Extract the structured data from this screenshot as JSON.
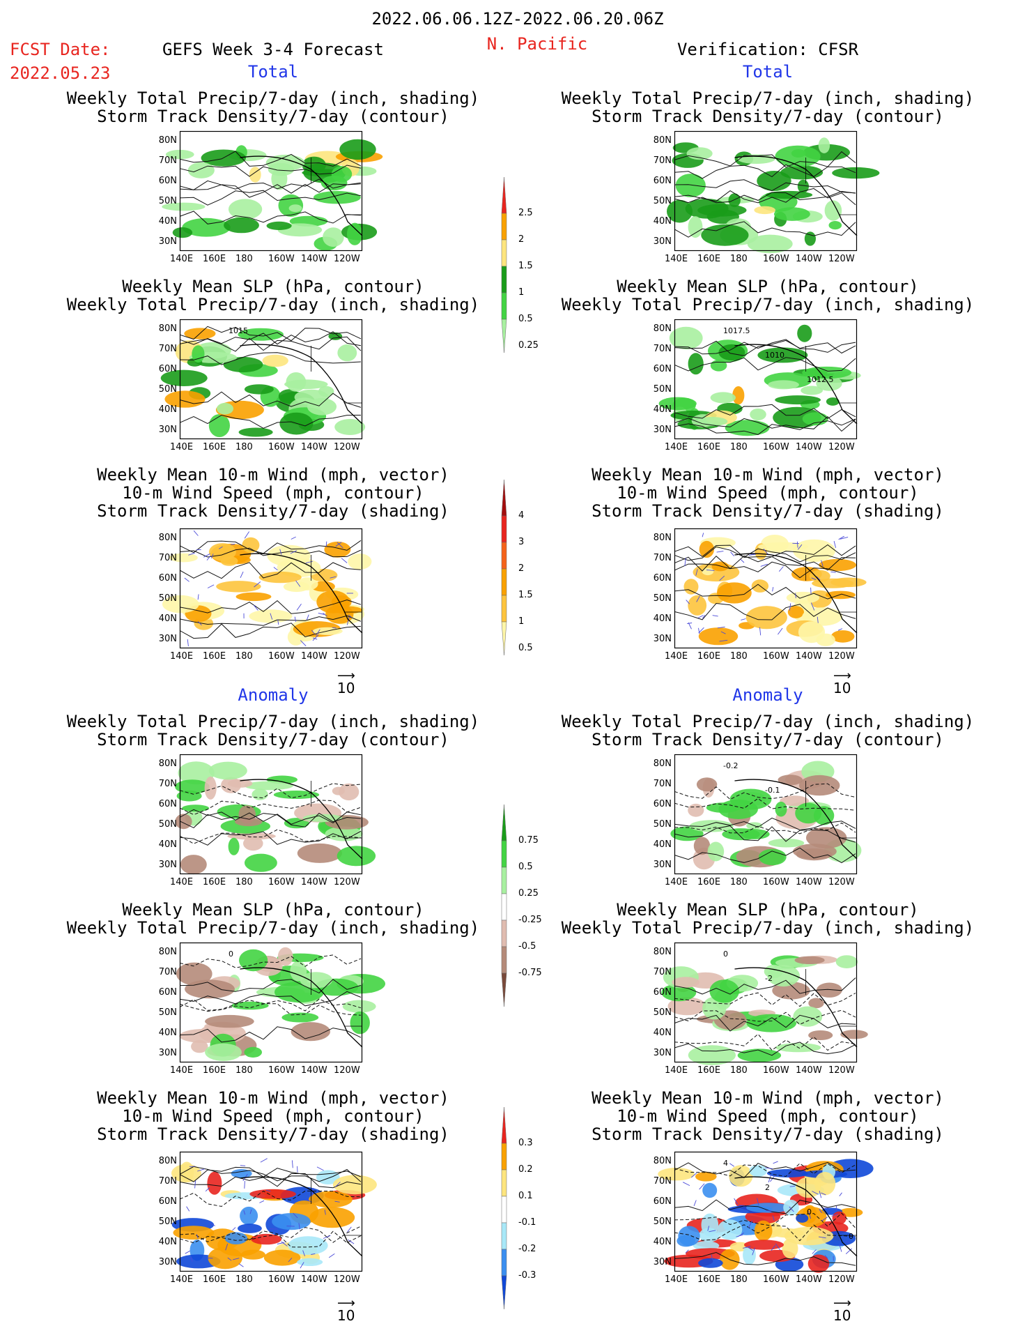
{
  "header": {
    "date_range": "2022.06.06.12Z-2022.06.20.06Z",
    "fcst_label": "FCST Date:",
    "fcst_date": "2022.05.23",
    "forecast_title": "GEFS Week 3-4 Forecast",
    "region": "N. Pacific",
    "verification": "Verification: CFSR",
    "total_left": "Total",
    "total_right": "Total",
    "anomaly_left": "Anomaly",
    "anomaly_right": "Anomaly"
  },
  "titles": {
    "precip_track": [
      "Weekly Total Precip/7-day (inch, shading)",
      "Storm Track Density/7-day (contour)"
    ],
    "slp_precip": [
      "Weekly Mean SLP (hPa, contour)",
      "Weekly Total Precip/7-day (inch, shading)"
    ],
    "wind_track": [
      "Weekly Mean 10-m Wind (mph, vector)",
      "10-m Wind Speed (mph, contour)",
      "Storm Track Density/7-day (shading)"
    ]
  },
  "axes": {
    "lat_labels": [
      "80N",
      "70N",
      "60N",
      "50N",
      "40N",
      "30N"
    ],
    "lon_labels": [
      "140E",
      "160E",
      "180",
      "160W",
      "140W",
      "120W"
    ]
  },
  "vector_reference": "10",
  "contour_labels": {
    "slp_total_fcst": [
      "1015"
    ],
    "slp_total_verif": [
      "1017.5",
      "1010",
      "1012.5"
    ],
    "precip_anom_verif": [
      "-0.2",
      "-0.1"
    ],
    "slp_anom_verif": [
      "0",
      "-2"
    ],
    "slp_anom_fcst": [
      "0"
    ],
    "wind_anom_verif": [
      "4",
      "2",
      "0",
      "0"
    ]
  },
  "colorbars": [
    {
      "id": "precip-total",
      "labels": [
        "2.5",
        "2",
        "1.5",
        "1",
        "0.5",
        "0.25"
      ],
      "colors": [
        "#e8251f",
        "#f9a100",
        "#fde57e",
        "#1a9c1a",
        "#43d443",
        "#a8f0a0"
      ]
    },
    {
      "id": "track-total",
      "labels": [
        "4",
        "3",
        "2",
        "1.5",
        "1",
        "0.5"
      ],
      "colors": [
        "#a30d0d",
        "#e8251f",
        "#f5631a",
        "#f9a100",
        "#fdc43d",
        "#fef6a8"
      ]
    },
    {
      "id": "precip-anom",
      "labels": [
        "0.75",
        "0.5",
        "0.25",
        "-0.25",
        "-0.5",
        "-0.75"
      ],
      "colors": [
        "#1a9c1a",
        "#43d443",
        "#a8f0a0",
        "#ffffff",
        "#e0bcb0",
        "#b58b7a",
        "#7a4a3a"
      ]
    },
    {
      "id": "track-anom",
      "labels": [
        "0.3",
        "0.2",
        "0.1",
        "-0.1",
        "-0.2",
        "-0.3"
      ],
      "colors": [
        "#e8251f",
        "#f9a100",
        "#fde57e",
        "#ffffff",
        "#a8e8f8",
        "#3b8ff0",
        "#1048d8"
      ]
    }
  ]
}
